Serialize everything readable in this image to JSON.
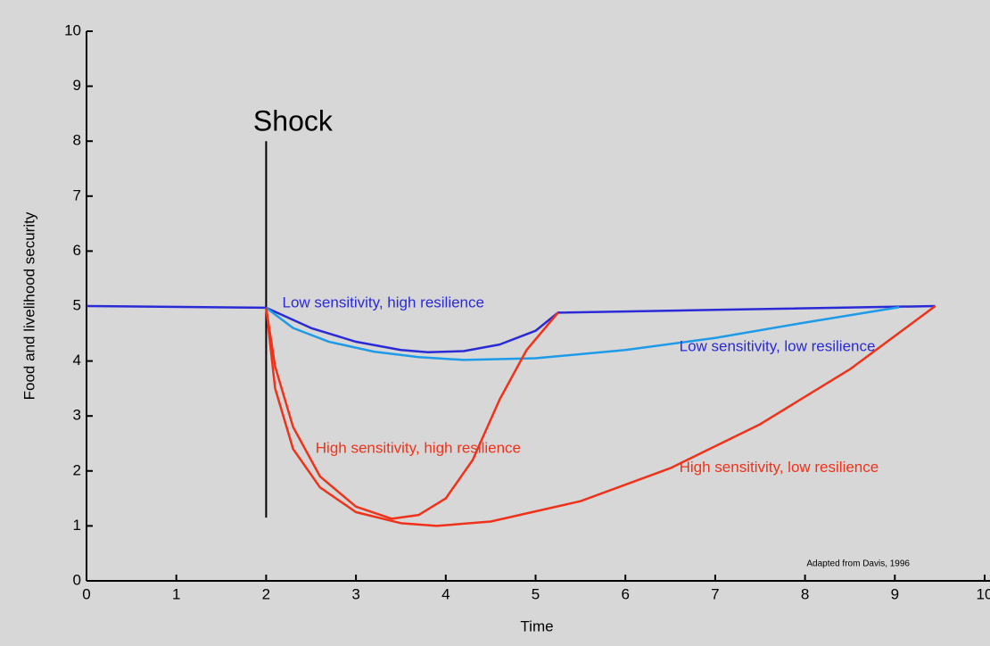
{
  "chart_data": {
    "type": "line",
    "x_label": "Time",
    "y_label": "Food and livelihood security",
    "xlim": [
      0,
      10
    ],
    "xticks": [
      0,
      1,
      2,
      3,
      4,
      5,
      6,
      7,
      8,
      9,
      10
    ],
    "ylim": [
      0,
      10
    ],
    "yticks": [
      0,
      1,
      2,
      3,
      4,
      5,
      6,
      7,
      8,
      9,
      10
    ],
    "series": [
      {
        "name": "Low sensitivity, high resilience",
        "color": "#2a2ad6",
        "x": [
          0,
          2,
          2.5,
          3,
          3.5,
          3.8,
          4.2,
          4.6,
          5,
          5.25,
          7,
          9.45
        ],
        "values": [
          5,
          4.97,
          4.6,
          4.35,
          4.2,
          4.16,
          4.18,
          4.3,
          4.55,
          4.88,
          4.93,
          5
        ]
      },
      {
        "name": "Low sensitivity, low resilience",
        "color": "#1e9be8",
        "x": [
          2,
          2.3,
          2.7,
          3.2,
          3.7,
          4.2,
          5,
          6,
          7,
          8,
          9.05
        ],
        "values": [
          4.97,
          4.6,
          4.35,
          4.17,
          4.07,
          4.02,
          4.05,
          4.2,
          4.42,
          4.7,
          4.98
        ]
      },
      {
        "name": "High sensitivity, high resilience",
        "color": "#f0321a",
        "x": [
          2,
          2.1,
          2.3,
          2.6,
          3,
          3.4,
          3.7,
          4,
          4.3,
          4.6,
          4.9,
          5.25
        ],
        "values": [
          4.97,
          3.9,
          2.8,
          1.9,
          1.35,
          1.13,
          1.2,
          1.5,
          2.2,
          3.3,
          4.2,
          4.88
        ]
      },
      {
        "name": "High sensitivity, low resilience",
        "color": "#f0321a",
        "x": [
          2,
          2.1,
          2.3,
          2.6,
          3,
          3.5,
          3.9,
          4.5,
          5.5,
          6.5,
          7.5,
          8.5,
          9.45
        ],
        "values": [
          4.97,
          3.5,
          2.4,
          1.7,
          1.25,
          1.05,
          1.0,
          1.08,
          1.45,
          2.05,
          2.85,
          3.85,
          5
        ]
      }
    ],
    "shock": {
      "label": "Shock",
      "x": 2,
      "y": [
        1.15,
        8
      ]
    },
    "note": "Adapted from Davis, 1996"
  }
}
